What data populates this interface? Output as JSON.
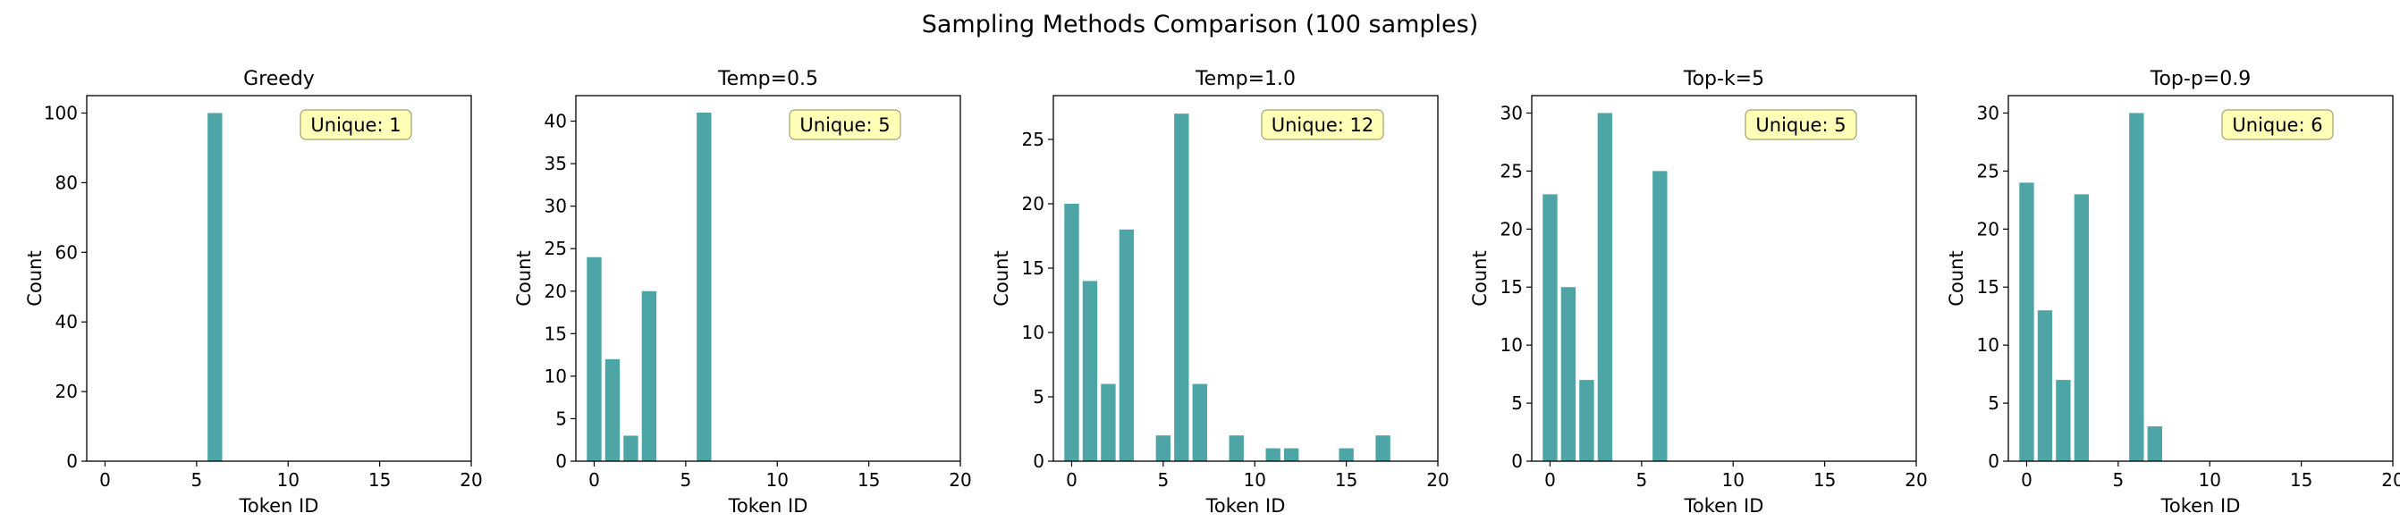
{
  "title": "Sampling Methods Comparison (100 samples)",
  "colors": {
    "bar": "#4ea5a5",
    "annotation_fill": "#ffffb8",
    "annotation_stroke": "#a0a070"
  },
  "chart_data": [
    {
      "type": "bar",
      "title": "Greedy",
      "xlabel": "Token ID",
      "ylabel": "Count",
      "xlim": [
        -1,
        20
      ],
      "ylim": [
        0,
        105
      ],
      "xticks": [
        0,
        5,
        10,
        15,
        20
      ],
      "yticks": [
        0,
        20,
        40,
        60,
        80,
        100
      ],
      "x": [
        6
      ],
      "values": [
        100
      ],
      "annotation": "Unique: 1"
    },
    {
      "type": "bar",
      "title": "Temp=0.5",
      "xlabel": "Token ID",
      "ylabel": "Count",
      "xlim": [
        -1,
        20
      ],
      "ylim": [
        0,
        43
      ],
      "xticks": [
        0,
        5,
        10,
        15,
        20
      ],
      "yticks": [
        0,
        5,
        10,
        15,
        20,
        25,
        30,
        35,
        40
      ],
      "x": [
        0,
        1,
        2,
        3,
        6
      ],
      "values": [
        24,
        12,
        3,
        20,
        41
      ],
      "annotation": "Unique: 5"
    },
    {
      "type": "bar",
      "title": "Temp=1.0",
      "xlabel": "Token ID",
      "ylabel": "Count",
      "xlim": [
        -1,
        20
      ],
      "ylim": [
        0,
        28.4
      ],
      "xticks": [
        0,
        5,
        10,
        15,
        20
      ],
      "yticks": [
        0,
        5,
        10,
        15,
        20,
        25
      ],
      "x": [
        0,
        1,
        2,
        3,
        5,
        6,
        7,
        9,
        11,
        12,
        15,
        17
      ],
      "values": [
        20,
        14,
        6,
        18,
        2,
        27,
        6,
        2,
        1,
        1,
        1,
        2
      ],
      "annotation": "Unique: 12"
    },
    {
      "type": "bar",
      "title": "Top-k=5",
      "xlabel": "Token ID",
      "ylabel": "Count",
      "xlim": [
        -1,
        20
      ],
      "ylim": [
        0,
        31.5
      ],
      "xticks": [
        0,
        5,
        10,
        15,
        20
      ],
      "yticks": [
        0,
        5,
        10,
        15,
        20,
        25,
        30
      ],
      "x": [
        0,
        1,
        2,
        3,
        6
      ],
      "values": [
        23,
        15,
        7,
        30,
        25
      ],
      "annotation": "Unique: 5"
    },
    {
      "type": "bar",
      "title": "Top-p=0.9",
      "xlabel": "Token ID",
      "ylabel": "Count",
      "xlim": [
        -1,
        20
      ],
      "ylim": [
        0,
        31.5
      ],
      "xticks": [
        0,
        5,
        10,
        15,
        20
      ],
      "yticks": [
        0,
        5,
        10,
        15,
        20,
        25,
        30
      ],
      "x": [
        0,
        1,
        2,
        3,
        6,
        7
      ],
      "values": [
        24,
        13,
        7,
        23,
        30,
        3
      ],
      "annotation": "Unique: 6"
    }
  ]
}
